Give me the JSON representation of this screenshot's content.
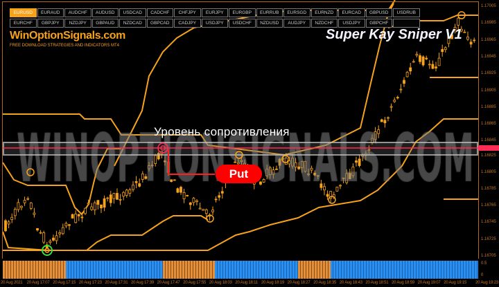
{
  "symbols_row1": [
    "EURUSD",
    "EURAUD",
    "AUDCHF",
    "AUDUSD",
    "USDCAD",
    "CADCHF",
    "CHFJPY",
    "EURJPY",
    "EURGBP",
    "EURRUB",
    "EURSGD",
    "EURNZD",
    "EURCAD",
    "GBPUSD",
    "USDRUB"
  ],
  "symbols_row2": [
    "EURCHF",
    "GBPJPY",
    "NZDJPY",
    "GBPAUD",
    "NZDCAD",
    "GBPCAD",
    "CADJPY",
    "USDJPY",
    "USDCHF",
    "NZDUSD",
    "AUDJPY",
    "NZDCHF",
    "USDJPY",
    "GBPCHF",
    ""
  ],
  "active_symbol": "EURUSD",
  "logo": "WinOptionSignals.com",
  "tagline": "FREE DOWNLOAD STRATEGIES AND INDICATORS MT4",
  "product_title": "Super Kay Sniper V1",
  "watermark": "WINOPTIONSIGNALS.COM",
  "resistance_label": "Уровень сопротивления",
  "signal_label": "Put",
  "price_axis": [
    "1.17005",
    "1.16985",
    "1.16965",
    "1.16945",
    "1.16925",
    "1.16905",
    "1.16885",
    "1.16865",
    "1.16845",
    "1.16825",
    "1.16805",
    "1.16785",
    "1.16765",
    "1.16745",
    "1.16725",
    "1.16705"
  ],
  "indicator_axis": [
    "0.5",
    "0"
  ],
  "indicator_segments": [
    "sell",
    "buy",
    "sell",
    "buy",
    "sell",
    "buy"
  ],
  "time_axis": [
    "20 Aug 2021",
    "20 Aug 17:07",
    "20 Aug 17:15",
    "20 Aug 17:23",
    "20 Aug 17:31",
    "20 Aug 17:39",
    "20 Aug 17:47",
    "20 Aug 17:55",
    "20 Aug 18:03",
    "20 Aug 18:11",
    "20 Aug 18:19",
    "20 Aug 18:27",
    "20 Aug 18:35",
    "20 Aug 18:43",
    "20 Aug 18:51",
    "20 Aug 18:59",
    "20 Aug 19:07",
    "20 Aug 19:15",
    "20 Aug 19:23"
  ],
  "colors": {
    "candle": "#f7a21b",
    "channel": "#f7a21b",
    "resistance": "#ff2c55",
    "put": "#ff0000",
    "buy": "#2b8ff0",
    "sell": "#e4903a",
    "buy_marker": "#3ddc3d"
  }
}
